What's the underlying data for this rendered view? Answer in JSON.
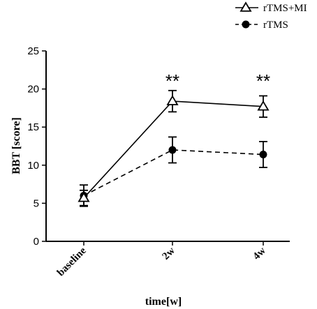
{
  "chart_data": {
    "type": "line",
    "categories": [
      "baseline",
      "2w",
      "4w"
    ],
    "xlabel": "time[w]",
    "ylabel": "BBT [score]",
    "ylim": [
      0,
      25
    ],
    "yticks": [
      0,
      5,
      10,
      15,
      20,
      25
    ],
    "legend_position": "top-right",
    "series": [
      {
        "name": "rTMS+MI",
        "marker": "open-triangle",
        "line_style": "solid",
        "values": [
          5.7,
          18.4,
          17.7
        ],
        "errors": [
          1.0,
          1.4,
          1.4
        ]
      },
      {
        "name": "rTMS",
        "marker": "filled-circle",
        "line_style": "dashed",
        "values": [
          6.0,
          12.0,
          11.4
        ],
        "errors": [
          1.4,
          1.7,
          1.7
        ]
      }
    ],
    "annotations": [
      {
        "category": "2w",
        "text": "**"
      },
      {
        "category": "4w",
        "text": "**"
      }
    ]
  }
}
